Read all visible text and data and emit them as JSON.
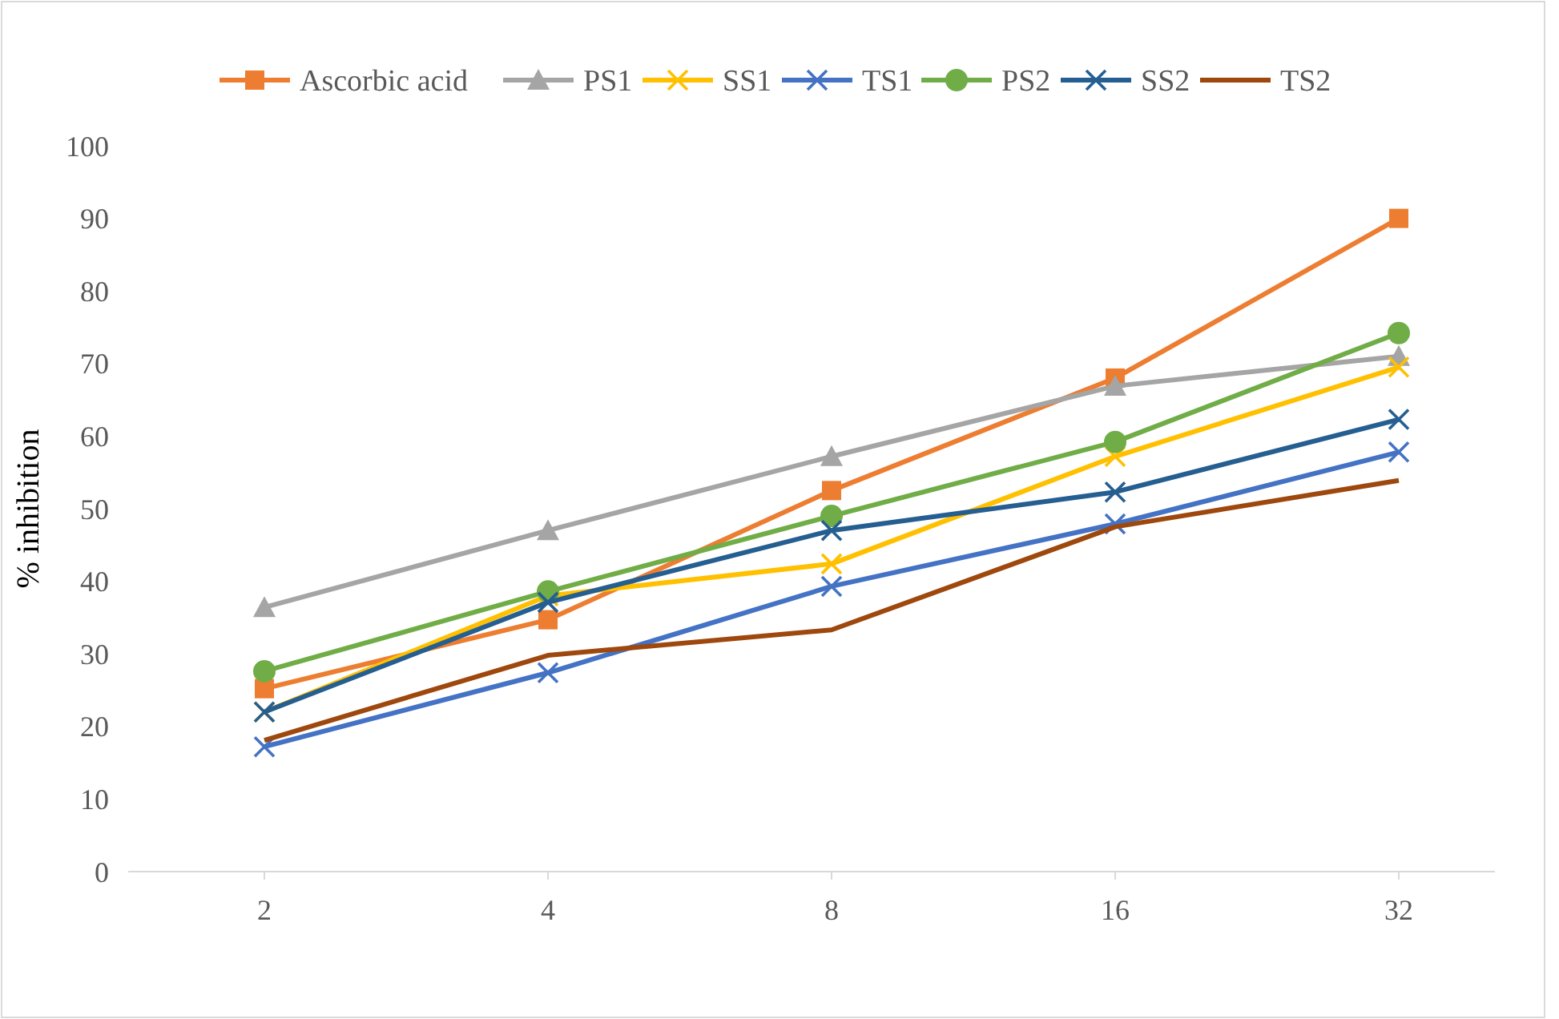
{
  "chart_data": {
    "type": "line",
    "ylabel": "% inhibition",
    "categories": [
      "2",
      "4",
      "8",
      "16",
      "32"
    ],
    "ylim": [
      0,
      100
    ],
    "yticks": [
      0,
      10,
      20,
      30,
      40,
      50,
      60,
      70,
      80,
      90,
      100
    ],
    "grid": false,
    "legend": "top",
    "line_style": "solid",
    "series": [
      {
        "name": "Ascorbic acid",
        "color": "#ed7d31",
        "marker": "square",
        "values": [
          25.2,
          34.7,
          52.5,
          68,
          90
        ]
      },
      {
        "name": "PS1",
        "color": "#a5a5a5",
        "marker": "triangle",
        "values": [
          36.4,
          47,
          57.2,
          66.9,
          71
        ]
      },
      {
        "name": "SS1",
        "color": "#ffc000",
        "marker": "cross",
        "values": [
          22,
          38,
          42.4,
          57.2,
          69.5
        ]
      },
      {
        "name": "TS1",
        "color": "#4472c4",
        "marker": "cross",
        "values": [
          17.2,
          27.4,
          39.3,
          47.9,
          57.8
        ]
      },
      {
        "name": "PS2",
        "color": "#70ad47",
        "marker": "circle",
        "values": [
          27.6,
          38.6,
          49,
          59.2,
          74.2
        ]
      },
      {
        "name": "SS2",
        "color": "#255e91",
        "marker": "cross",
        "values": [
          22,
          37.1,
          47,
          52.3,
          62.3
        ]
      },
      {
        "name": "TS2",
        "color": "#9e480e",
        "marker": "none",
        "values": [
          18.1,
          29.8,
          33.3,
          47.5,
          53.9
        ]
      }
    ]
  }
}
